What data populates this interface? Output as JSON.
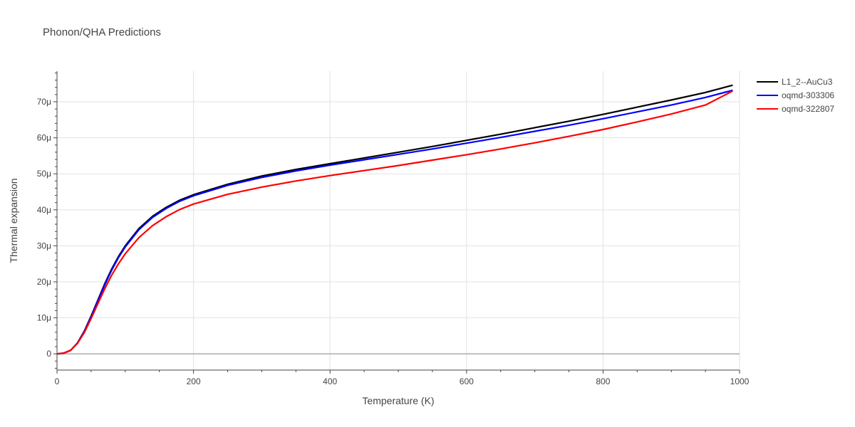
{
  "chart_data": {
    "type": "line",
    "title": "Phonon/QHA Predictions",
    "xlabel": "Temperature (K)",
    "ylabel": "Thermal expansion",
    "xlim": [
      0,
      1000
    ],
    "ylim": [
      -4.5,
      78.5
    ],
    "grid": true,
    "legend_position": "top-right",
    "x_ticks": [
      0,
      200,
      400,
      600,
      800,
      1000
    ],
    "x_tick_labels": [
      "0",
      "200",
      "400",
      "600",
      "800",
      "1000"
    ],
    "y_ticks": [
      0,
      10,
      20,
      30,
      40,
      50,
      60,
      70
    ],
    "y_tick_labels": [
      "0",
      "10μ",
      "20μ",
      "30μ",
      "40μ",
      "50μ",
      "60μ",
      "70μ"
    ],
    "series": [
      {
        "name": "L1_2--AuCu3",
        "color": "#000000",
        "x": [
          0,
          10,
          20,
          30,
          40,
          50,
          60,
          70,
          80,
          90,
          100,
          120,
          140,
          160,
          180,
          200,
          250,
          300,
          350,
          400,
          450,
          500,
          550,
          600,
          650,
          700,
          750,
          800,
          850,
          900,
          950,
          990
        ],
        "y": [
          0,
          0.2,
          1.0,
          3.0,
          6.3,
          10.5,
          15.0,
          19.5,
          23.5,
          27.0,
          30.0,
          34.8,
          38.2,
          40.7,
          42.7,
          44.2,
          47.1,
          49.4,
          51.2,
          52.8,
          54.4,
          56.0,
          57.6,
          59.3,
          61.0,
          62.8,
          64.6,
          66.5,
          68.5,
          70.5,
          72.6,
          74.6
        ]
      },
      {
        "name": "oqmd-303306",
        "color": "#0000ff",
        "x": [
          0,
          10,
          20,
          30,
          40,
          50,
          60,
          70,
          80,
          90,
          100,
          120,
          140,
          160,
          180,
          200,
          250,
          300,
          350,
          400,
          450,
          500,
          550,
          600,
          650,
          700,
          750,
          800,
          850,
          900,
          950,
          990
        ],
        "y": [
          0,
          0.2,
          1.0,
          3.0,
          6.2,
          10.3,
          14.8,
          19.2,
          23.2,
          26.7,
          29.7,
          34.5,
          37.9,
          40.4,
          42.4,
          43.9,
          46.8,
          49.0,
          50.8,
          52.4,
          53.9,
          55.4,
          56.9,
          58.5,
          60.1,
          61.8,
          63.5,
          65.3,
          67.2,
          69.1,
          71.2,
          73.2
        ]
      },
      {
        "name": "oqmd-322807",
        "color": "#ff0000",
        "x": [
          0,
          10,
          20,
          30,
          40,
          50,
          60,
          70,
          80,
          90,
          100,
          120,
          140,
          160,
          180,
          200,
          250,
          300,
          350,
          400,
          450,
          500,
          550,
          600,
          650,
          700,
          750,
          800,
          850,
          900,
          950,
          990
        ],
        "y": [
          0,
          0.2,
          1.0,
          2.9,
          5.9,
          9.8,
          14.0,
          18.1,
          21.8,
          25.0,
          27.8,
          32.3,
          35.6,
          38.1,
          40.1,
          41.6,
          44.3,
          46.3,
          48.0,
          49.5,
          50.9,
          52.3,
          53.8,
          55.3,
          56.9,
          58.6,
          60.4,
          62.3,
          64.4,
          66.6,
          69.1,
          73.0
        ]
      }
    ]
  }
}
